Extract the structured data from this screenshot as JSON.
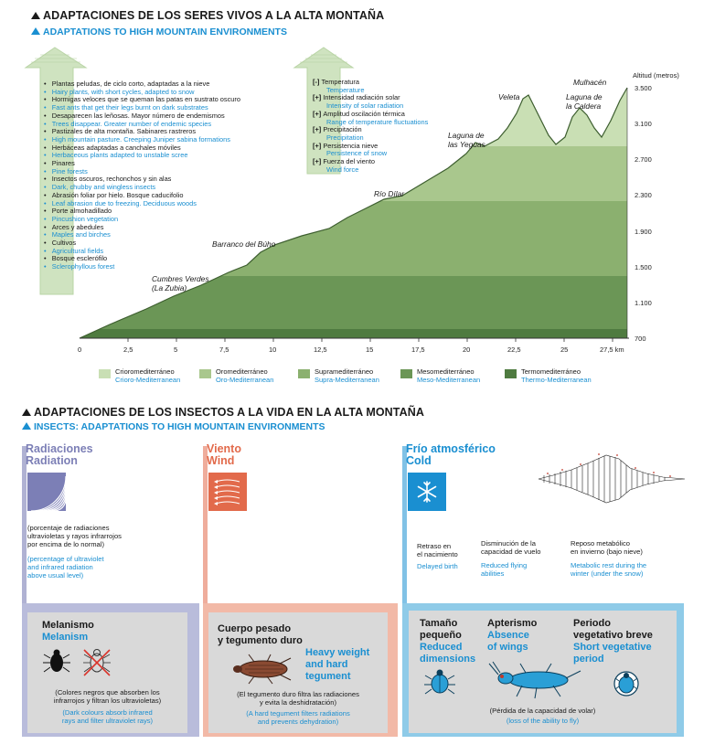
{
  "top": {
    "title_es": "ADAPTACIONES DE LOS SERES VIVOS A LA ALTA MONTAÑA",
    "title_en": "ADAPTATIONS TO HIGH MOUNTAIN ENVIRONMENTS",
    "left_labels": [
      {
        "es": "Plantas peludas, de ciclo corto, adaptadas a la nieve",
        "en": "Hairy plants, with short cycles, adapted to snow"
      },
      {
        "es": "Hormigas veloces que se queman las patas en sustrato oscuro",
        "en": "Fast ants that get their legs burnt on dark substrates"
      },
      {
        "es": "Desaparecen las leñosas. Mayor número de endemismos",
        "en": "Trees disappear. Greater number of endemic species"
      },
      {
        "es": "Pastizales de alta montaña. Sabinares rastreros",
        "en": "High mountain pasture. Creeping Juniper sabina formations"
      },
      {
        "es": "Herbáceas adaptadas a canchales móviles",
        "en": "Herbaceous plants adapted to unstable scree"
      },
      {
        "es": "Pinares",
        "en": "Pine forests"
      },
      {
        "es": "Insectos oscuros, rechonchos y sin alas",
        "en": "Dark, chubby and wingless insects"
      },
      {
        "es": "Abrasión foliar por hielo. Bosque caducifolio",
        "en": "Leaf abrasion due to freezing. Deciduous woods"
      },
      {
        "es": "Porte almohadillado",
        "en": "Pincushion vegetation"
      },
      {
        "es": "Arces y abedules",
        "en": "Maples and birches"
      },
      {
        "es": "Cultivos",
        "en": "Agricultural fields"
      },
      {
        "es": "Bosque esclerófilo",
        "en": "Sclerophyllous forest"
      }
    ],
    "right_labels": [
      {
        "sign": "[-]",
        "es": "Temperatura",
        "en": "Temperature"
      },
      {
        "sign": "[+]",
        "es": "Intensidad radiación solar",
        "en": "Intensity of solar radiation"
      },
      {
        "sign": "[+]",
        "es": "Amplitud oscilación térmica",
        "en": "Range of temperature fluctuations"
      },
      {
        "sign": "[+]",
        "es": "Precipitación",
        "en": "Precipitation"
      },
      {
        "sign": "[+]",
        "es": "Persistencia nieve",
        "en": "Persistence of snow"
      },
      {
        "sign": "[+]",
        "es": "Fuerza del viento",
        "en": "Wind force"
      }
    ],
    "altitude_title": "Altitud (metros)",
    "altitude_ticks": [
      "3.500",
      "3.100",
      "2.700",
      "2.300",
      "1.900",
      "1.500",
      "1.100",
      "700"
    ],
    "km_ticks": [
      "0",
      "2,5",
      "5",
      "7,5",
      "10",
      "12,5",
      "15",
      "17,5",
      "20",
      "22,5",
      "25",
      "27,5 km"
    ],
    "places": {
      "zubia": "Cumbres Verdes\n(La Zubia)",
      "buho": "Barranco del Búho",
      "dilar": "Río Dílar",
      "yeguas": "Laguna de\nlas Yeguas",
      "veleta": "Veleta",
      "caldera": "Laguna de\nla Caldera",
      "mulhacen": "Mulhacén"
    },
    "legend": [
      {
        "es": "Crioromediterráneo",
        "en": "Crioro-Mediterranean",
        "color": "#c9dfb4"
      },
      {
        "es": "Oromediterráneo",
        "en": "Oro-Mediterranean",
        "color": "#a9c78d"
      },
      {
        "es": "Supramediterráneo",
        "en": "Supra-Mediterranean",
        "color": "#8bb06f"
      },
      {
        "es": "Mesomediterráneo",
        "en": "Meso-Mediterranean",
        "color": "#6b9656"
      },
      {
        "es": "Termomediterráneo",
        "en": "Thermo-Mediterranean",
        "color": "#4f7b40"
      }
    ]
  },
  "bottom": {
    "title_es": "ADAPTACIONES DE LOS INSECTOS A LA VIDA EN LA ALTA MONTAÑA",
    "title_en": "INSECTS: ADAPTATIONS TO HIGH MOUNTAIN ENVIRONMENTS",
    "radiation": {
      "h_es": "Radiaciones",
      "h_en": "Radiation",
      "desc_es": "(porcentaje de radiaciones\nultravioletas y rayos infrarrojos\npor encima de lo normal)",
      "desc_en": "(percentage of ultraviolet\nand infrared radiation\nabove usual level)",
      "box_h_es": "Melanismo",
      "box_h_en": "Melanism",
      "box_es": "(Colores negros que absorben los\ninfrarrojos y filtran los ultravioletas)",
      "box_en": "(Dark colours absorb infrared\nrays and filter ultraviolet rays)"
    },
    "wind": {
      "h_es": "Viento",
      "h_en": "Wind",
      "box_h_es": "Cuerpo pesado\ny tegumento duro",
      "box_h_en": "Heavy weight\nand hard\ntegument",
      "box_es": "(El tegumento duro filtra las radiaciones\ny evita la deshidratación)",
      "box_en": "(A hard tegument filters radiations\nand prevents dehydration)"
    },
    "cold": {
      "h_es": "Frío atmosférico",
      "h_en": "Cold",
      "items": [
        {
          "es": "Retraso en\nel nacimiento",
          "en": "Delayed birth"
        },
        {
          "es": "Disminución de la\ncapacidad de vuelo",
          "en": "Reduced flying\nabilities"
        },
        {
          "es": "Reposo metabólico\nen invierno (bajo nieve)",
          "en": "Metabolic rest during the\nwinter (under the snow)"
        }
      ],
      "box_cols": [
        {
          "es": "Tamaño\npequeño",
          "en": "Reduced\ndimensions"
        },
        {
          "es": "Apterismo",
          "en": "Absence\nof wings"
        },
        {
          "es": "Periodo\nvegetativo breve",
          "en": "Short vegetative\nperiod"
        }
      ],
      "box_es": "(Pérdida de la capacidad de volar)",
      "box_en": "(loss of the ability to fly)"
    },
    "colors": {
      "radiation": "#7c7fb6",
      "wind": "#e26a4b",
      "cold": "#1a8fd1"
    }
  }
}
